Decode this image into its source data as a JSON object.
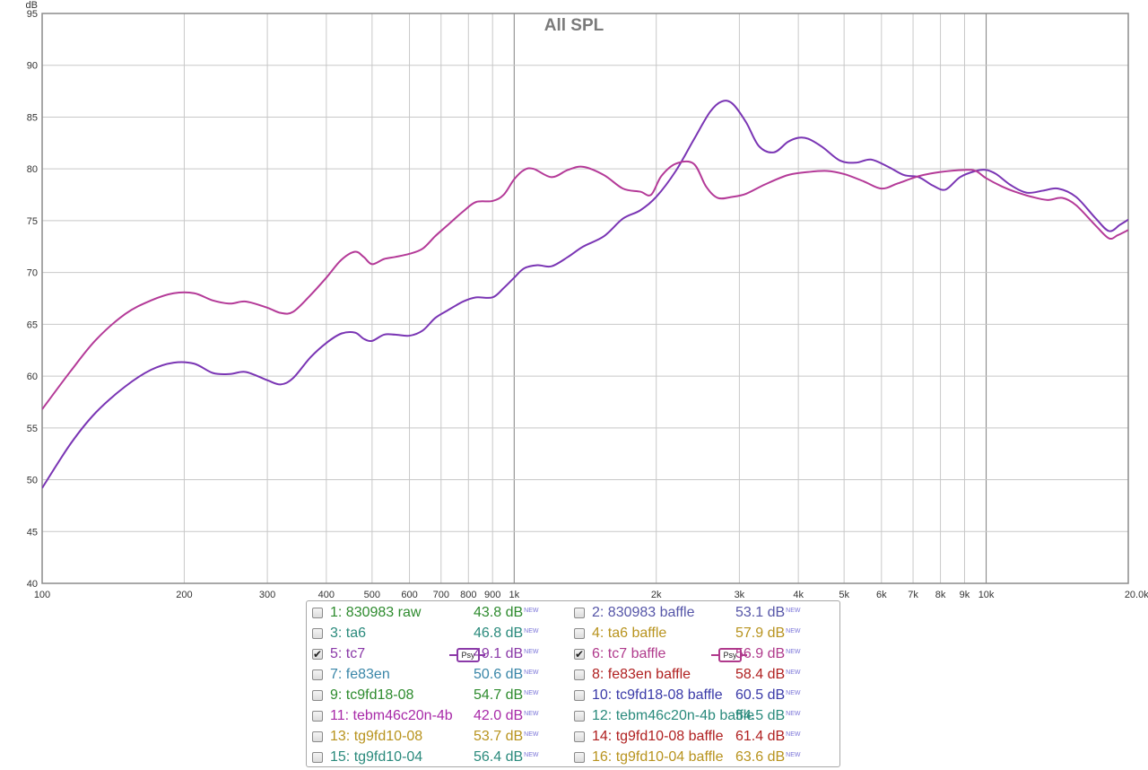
{
  "chart_data": {
    "type": "line",
    "title": "All SPL",
    "ylabel": "dB",
    "xlabel": "",
    "x_unit_label": "20.0kHz",
    "x_scale": "log",
    "xlim": [
      100,
      20000
    ],
    "ylim": [
      40,
      95
    ],
    "grid": true,
    "y_ticks": [
      "40",
      "45",
      "50",
      "55",
      "60",
      "65",
      "70",
      "75",
      "80",
      "85",
      "90",
      "95"
    ],
    "x_ticks": [
      {
        "value": 100,
        "label": "100"
      },
      {
        "value": 200,
        "label": "200"
      },
      {
        "value": 300,
        "label": "300"
      },
      {
        "value": 400,
        "label": "400"
      },
      {
        "value": 500,
        "label": "500"
      },
      {
        "value": 600,
        "label": "600"
      },
      {
        "value": 700,
        "label": "700"
      },
      {
        "value": 800,
        "label": "800"
      },
      {
        "value": 900,
        "label": "900"
      },
      {
        "value": 1000,
        "label": "1k"
      },
      {
        "value": 2000,
        "label": "2k"
      },
      {
        "value": 3000,
        "label": "3k"
      },
      {
        "value": 4000,
        "label": "4k"
      },
      {
        "value": 5000,
        "label": "5k"
      },
      {
        "value": 6000,
        "label": "6k"
      },
      {
        "value": 7000,
        "label": "7k"
      },
      {
        "value": 8000,
        "label": "8k"
      },
      {
        "value": 9000,
        "label": "9k"
      },
      {
        "value": 10000,
        "label": "10k"
      },
      {
        "value": 20000,
        "label": "20.0kHz"
      }
    ],
    "series": [
      {
        "name": "5: tc7",
        "color": "#7a35b4",
        "points": [
          [
            100,
            49.2
          ],
          [
            115,
            53.5
          ],
          [
            130,
            56.5
          ],
          [
            150,
            59.0
          ],
          [
            170,
            60.6
          ],
          [
            190,
            61.3
          ],
          [
            210,
            61.2
          ],
          [
            230,
            60.3
          ],
          [
            250,
            60.2
          ],
          [
            270,
            60.4
          ],
          [
            300,
            59.6
          ],
          [
            320,
            59.2
          ],
          [
            340,
            59.8
          ],
          [
            370,
            61.8
          ],
          [
            400,
            63.2
          ],
          [
            430,
            64.1
          ],
          [
            460,
            64.2
          ],
          [
            480,
            63.6
          ],
          [
            500,
            63.4
          ],
          [
            530,
            64.0
          ],
          [
            560,
            64.0
          ],
          [
            600,
            63.9
          ],
          [
            640,
            64.4
          ],
          [
            680,
            65.6
          ],
          [
            720,
            66.3
          ],
          [
            780,
            67.2
          ],
          [
            830,
            67.6
          ],
          [
            900,
            67.6
          ],
          [
            950,
            68.5
          ],
          [
            1000,
            69.5
          ],
          [
            1050,
            70.4
          ],
          [
            1120,
            70.7
          ],
          [
            1200,
            70.6
          ],
          [
            1300,
            71.5
          ],
          [
            1400,
            72.5
          ],
          [
            1550,
            73.5
          ],
          [
            1700,
            75.2
          ],
          [
            1850,
            76.0
          ],
          [
            2000,
            77.3
          ],
          [
            2200,
            79.8
          ],
          [
            2400,
            82.8
          ],
          [
            2600,
            85.5
          ],
          [
            2750,
            86.5
          ],
          [
            2900,
            86.3
          ],
          [
            3100,
            84.5
          ],
          [
            3300,
            82.2
          ],
          [
            3550,
            81.6
          ],
          [
            3800,
            82.6
          ],
          [
            4000,
            83.0
          ],
          [
            4200,
            82.9
          ],
          [
            4500,
            82.1
          ],
          [
            4900,
            80.8
          ],
          [
            5300,
            80.6
          ],
          [
            5700,
            80.9
          ],
          [
            6200,
            80.2
          ],
          [
            6700,
            79.4
          ],
          [
            7200,
            79.2
          ],
          [
            7700,
            78.4
          ],
          [
            8200,
            78.0
          ],
          [
            8800,
            79.2
          ],
          [
            9500,
            79.8
          ],
          [
            10000,
            79.9
          ],
          [
            10500,
            79.5
          ],
          [
            11300,
            78.4
          ],
          [
            12200,
            77.7
          ],
          [
            13200,
            77.9
          ],
          [
            14200,
            78.1
          ],
          [
            15500,
            77.3
          ],
          [
            17000,
            75.3
          ],
          [
            18200,
            74.0
          ],
          [
            19200,
            74.6
          ],
          [
            20000,
            75.1
          ]
        ]
      },
      {
        "name": "6: tc7 baffle",
        "color": "#b43a98",
        "points": [
          [
            100,
            56.8
          ],
          [
            115,
            60.5
          ],
          [
            130,
            63.5
          ],
          [
            150,
            66.0
          ],
          [
            170,
            67.3
          ],
          [
            190,
            68.0
          ],
          [
            210,
            68.0
          ],
          [
            230,
            67.3
          ],
          [
            250,
            67.0
          ],
          [
            270,
            67.2
          ],
          [
            300,
            66.6
          ],
          [
            320,
            66.1
          ],
          [
            340,
            66.2
          ],
          [
            370,
            67.8
          ],
          [
            400,
            69.5
          ],
          [
            430,
            71.2
          ],
          [
            460,
            72.0
          ],
          [
            480,
            71.5
          ],
          [
            500,
            70.8
          ],
          [
            530,
            71.3
          ],
          [
            560,
            71.5
          ],
          [
            600,
            71.8
          ],
          [
            640,
            72.3
          ],
          [
            680,
            73.5
          ],
          [
            720,
            74.5
          ],
          [
            780,
            75.9
          ],
          [
            830,
            76.8
          ],
          [
            900,
            76.9
          ],
          [
            950,
            77.5
          ],
          [
            1000,
            79.0
          ],
          [
            1050,
            79.9
          ],
          [
            1100,
            80.0
          ],
          [
            1200,
            79.2
          ],
          [
            1300,
            79.9
          ],
          [
            1400,
            80.2
          ],
          [
            1550,
            79.4
          ],
          [
            1700,
            78.1
          ],
          [
            1850,
            77.8
          ],
          [
            1950,
            77.5
          ],
          [
            2050,
            79.3
          ],
          [
            2200,
            80.5
          ],
          [
            2400,
            80.5
          ],
          [
            2550,
            78.3
          ],
          [
            2700,
            77.2
          ],
          [
            2900,
            77.3
          ],
          [
            3100,
            77.6
          ],
          [
            3400,
            78.5
          ],
          [
            3800,
            79.4
          ],
          [
            4200,
            79.7
          ],
          [
            4600,
            79.8
          ],
          [
            5000,
            79.5
          ],
          [
            5500,
            78.8
          ],
          [
            6000,
            78.1
          ],
          [
            6500,
            78.6
          ],
          [
            7200,
            79.3
          ],
          [
            8000,
            79.7
          ],
          [
            9000,
            79.9
          ],
          [
            9500,
            79.8
          ],
          [
            10000,
            79.1
          ],
          [
            10800,
            78.3
          ],
          [
            11500,
            77.8
          ],
          [
            12500,
            77.3
          ],
          [
            13500,
            77.0
          ],
          [
            14500,
            77.2
          ],
          [
            15500,
            76.5
          ],
          [
            17000,
            74.6
          ],
          [
            18200,
            73.3
          ],
          [
            19000,
            73.6
          ],
          [
            20000,
            74.1
          ]
        ]
      }
    ]
  },
  "legend": {
    "items": [
      {
        "label": "1: 830983 raw",
        "value": "43.8 dB",
        "badge": "NEW",
        "checked": false,
        "psy": false,
        "color": "#2e8b2e"
      },
      {
        "label": "2: 830983 baffle",
        "value": "53.1 dB",
        "badge": "NEW",
        "checked": false,
        "psy": false,
        "color": "#5656a8"
      },
      {
        "label": "3: ta6",
        "value": "46.8 dB",
        "badge": "NEW",
        "checked": false,
        "psy": false,
        "color": "#2a8a7c"
      },
      {
        "label": "4: ta6 baffle",
        "value": "57.9 dB",
        "badge": "NEW",
        "checked": false,
        "psy": false,
        "color": "#b8931e"
      },
      {
        "label": "5: tc7",
        "value": "49.1 dB",
        "badge": "NEW",
        "checked": true,
        "psy": true,
        "psy_label": "Psy",
        "color": "#8b3aa8"
      },
      {
        "label": "6: tc7 baffle",
        "value": "56.9 dB",
        "badge": "NEW",
        "checked": true,
        "psy": true,
        "psy_label": "Psy",
        "color": "#b03a8c"
      },
      {
        "label": "7: fe83en",
        "value": "50.6 dB",
        "badge": "NEW",
        "checked": false,
        "psy": false,
        "color": "#3a86a8"
      },
      {
        "label": "8: fe83en baffle",
        "value": "58.4 dB",
        "badge": "NEW",
        "checked": false,
        "psy": false,
        "color": "#b02020"
      },
      {
        "label": "9: tc9fd18-08",
        "value": "54.7 dB",
        "badge": "NEW",
        "checked": false,
        "psy": false,
        "color": "#2e8b2e"
      },
      {
        "label": "10: tc9fd18-08 baffle",
        "value": "60.5 dB",
        "badge": "NEW",
        "checked": false,
        "psy": false,
        "color": "#3a3aa8"
      },
      {
        "label": "11: tebm46c20n-4b",
        "value": "42.0 dB",
        "badge": "NEW",
        "checked": false,
        "psy": false,
        "color": "#a82aa8"
      },
      {
        "label": "12: tebm46c20n-4b baffle",
        "value": "54.5 dB",
        "badge": "NEW",
        "checked": false,
        "psy": false,
        "color": "#2a8a7c"
      },
      {
        "label": "13: tg9fd10-08",
        "value": "53.7 dB",
        "badge": "NEW",
        "checked": false,
        "psy": false,
        "color": "#b8931e"
      },
      {
        "label": "14: tg9fd10-08 baffle",
        "value": "61.4 dB",
        "badge": "NEW",
        "checked": false,
        "psy": false,
        "color": "#b02020"
      },
      {
        "label": "15: tg9fd10-04",
        "value": "56.4 dB",
        "badge": "NEW",
        "checked": false,
        "psy": false,
        "color": "#2a8a7c"
      },
      {
        "label": "16: tg9fd10-04 baffle",
        "value": "63.6 dB",
        "badge": "NEW",
        "checked": false,
        "psy": false,
        "color": "#b8931e"
      }
    ]
  },
  "colors": {
    "grid": "#c8c8c8",
    "decade_grid": "#808080",
    "plot_border": "#8c8c8c"
  }
}
